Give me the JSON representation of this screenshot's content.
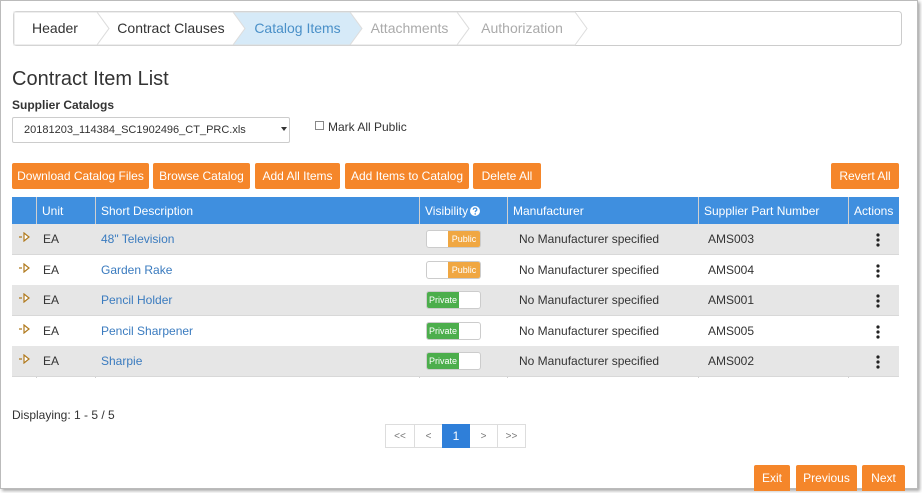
{
  "steps": [
    {
      "label": "Header",
      "state": "done"
    },
    {
      "label": "Contract Clauses",
      "state": "done"
    },
    {
      "label": "Catalog Items",
      "state": "active"
    },
    {
      "label": "Attachments",
      "state": "todo"
    },
    {
      "label": "Authorization",
      "state": "todo"
    }
  ],
  "title": "Contract Item List",
  "supplier_catalogs_label": "Supplier Catalogs",
  "catalog_select": "20181203_114384_SC1902496_CT_PRC.xls",
  "mark_all_public": "Mark All Public",
  "buttons": [
    "Download Catalog Files",
    "Browse Catalog",
    "Add All Items",
    "Add Items to Catalog",
    "Delete All"
  ],
  "revert_button": "Revert All",
  "table": {
    "columns": [
      "Unit",
      "Short Description",
      "Visibility",
      "Manufacturer",
      "Supplier Part Number",
      "Actions"
    ],
    "rows": [
      {
        "unit": "EA",
        "description": "48\" Television",
        "visibility": {
          "label": "Public",
          "color": "#f0a742",
          "knob": "left"
        },
        "manufacturer": "No Manufacturer specified",
        "part": "AMS003"
      },
      {
        "unit": "EA",
        "description": "Garden Rake",
        "visibility": {
          "label": "Public",
          "color": "#f0a742",
          "knob": "left"
        },
        "manufacturer": "No Manufacturer specified",
        "part": "AMS004"
      },
      {
        "unit": "EA",
        "description": "Pencil Holder",
        "visibility": {
          "label": "Private",
          "color": "#4cae4c",
          "knob": "right"
        },
        "manufacturer": "No Manufacturer specified",
        "part": "AMS001"
      },
      {
        "unit": "EA",
        "description": "Pencil Sharpener",
        "visibility": {
          "label": "Private",
          "color": "#4cae4c",
          "knob": "right"
        },
        "manufacturer": "No Manufacturer specified",
        "part": "AMS005"
      },
      {
        "unit": "EA",
        "description": "Sharpie",
        "visibility": {
          "label": "Private",
          "color": "#4cae4c",
          "knob": "right"
        },
        "manufacturer": "No Manufacturer specified",
        "part": "AMS002"
      }
    ]
  },
  "displaying": "Displaying: 1 - 5 / 5",
  "pagination": {
    "items": [
      "<<",
      "<",
      "1",
      ">",
      ">>"
    ],
    "active": 2
  },
  "footer_buttons": [
    "Exit",
    "Previous",
    "Next"
  ]
}
